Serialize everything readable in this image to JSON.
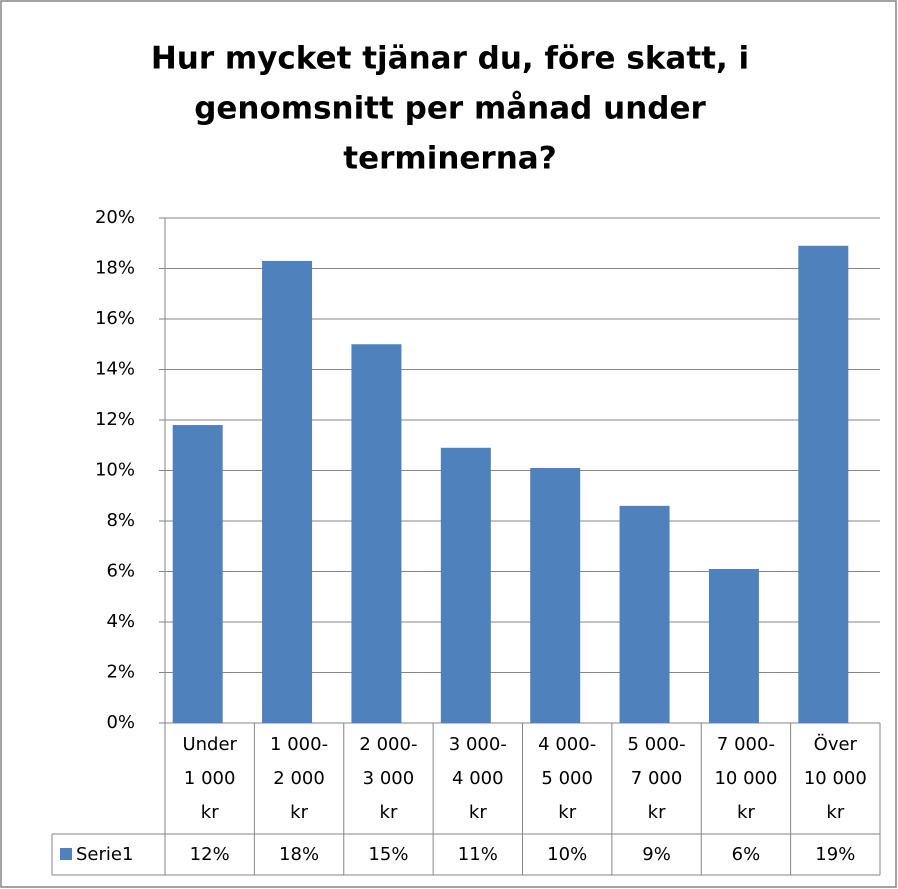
{
  "chart_data": {
    "type": "bar",
    "title": [
      "Hur mycket tjänar du, före skatt, i",
      "genomsnitt per månad under",
      "terminerna?"
    ],
    "categories": [
      [
        "Under",
        "1 000",
        "kr"
      ],
      [
        "1 000-",
        "2 000",
        "kr"
      ],
      [
        "2 000-",
        "3 000",
        "kr"
      ],
      [
        "3 000-",
        "4 000",
        "kr"
      ],
      [
        "4 000-",
        "5 000",
        "kr"
      ],
      [
        "5 000-",
        "7 000",
        "kr"
      ],
      [
        "7 000-",
        "10 000",
        "kr"
      ],
      [
        "Över",
        "10 000",
        "kr"
      ]
    ],
    "series": [
      {
        "name": "Serie1",
        "color": "#4f81bd",
        "values": [
          11.8,
          18.3,
          15.0,
          10.9,
          10.1,
          8.6,
          6.1,
          18.9
        ],
        "value_labels": [
          "12%",
          "18%",
          "15%",
          "11%",
          "10%",
          "9%",
          "6%",
          "19%"
        ]
      }
    ],
    "ylim": [
      0,
      20
    ],
    "yticks": [
      {
        "value": 0,
        "label": "0%"
      },
      {
        "value": 2,
        "label": "2%"
      },
      {
        "value": 4,
        "label": "4%"
      },
      {
        "value": 6,
        "label": "6%"
      },
      {
        "value": 8,
        "label": "8%"
      },
      {
        "value": 10,
        "label": "10%"
      },
      {
        "value": 12,
        "label": "12%"
      },
      {
        "value": 14,
        "label": "14%"
      },
      {
        "value": 16,
        "label": "16%"
      },
      {
        "value": 18,
        "label": "18%"
      },
      {
        "value": 20,
        "label": "20%"
      }
    ],
    "grid": true
  }
}
